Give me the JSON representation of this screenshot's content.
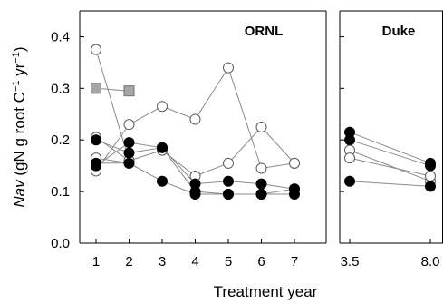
{
  "chart_data": {
    "type": "scatter",
    "ylabel": "Nav (gN g root C⁻¹ yr⁻¹)",
    "ylabel_italic_part": "Nav",
    "ylabel_rest": " (gN g root C",
    "ylabel_sup": "−1",
    "ylabel_mid": " yr",
    "ylabel_sup2": "−1",
    "ylabel_end": ")",
    "xlabel": "Treatment year",
    "ylim": [
      0,
      0.45
    ],
    "yticks": [
      "0.0",
      "0.1",
      "0.2",
      "0.3",
      "0.4"
    ],
    "yticks_values": [
      0,
      0.1,
      0.2,
      0.3,
      0.4
    ],
    "grid": false,
    "panels": [
      {
        "title": "ORNL",
        "xticks": [
          1,
          2,
          3,
          4,
          5,
          6,
          7
        ],
        "xticklabels": [
          "1",
          "2",
          "3",
          "4",
          "5",
          "6",
          "7"
        ],
        "xlim": [
          0.5,
          7.5
        ],
        "series": [
          {
            "marker": "open-circle",
            "x": [
              1,
              2,
              3,
              4,
              5,
              6,
              7
            ],
            "y": [
              0.375,
              0.16,
              0.18,
              0.13,
              0.155,
              0.225,
              0.155
            ]
          },
          {
            "marker": "open-circle",
            "x": [
              1,
              2,
              3,
              4,
              5,
              6,
              7
            ],
            "y": [
              0.14,
              0.23,
              0.265,
              0.24,
              0.34,
              0.145,
              0.155
            ]
          },
          {
            "marker": "open-circle",
            "x": [
              1,
              2
            ],
            "y": [
              0.165,
              0.155
            ]
          },
          {
            "marker": "open-circle",
            "x": [
              1,
              2
            ],
            "y": [
              0.205,
              0.16
            ]
          },
          {
            "marker": "filled-circle",
            "x": [
              1,
              2,
              3,
              4,
              5,
              6,
              7
            ],
            "y": [
              0.2,
              0.175,
              0.185,
              0.115,
              0.12,
              0.115,
              0.105
            ]
          },
          {
            "marker": "filled-circle",
            "x": [
              1,
              2,
              3,
              4,
              5,
              6,
              7
            ],
            "y": [
              0.15,
              0.195,
              0.185,
              0.1,
              0.095,
              0.095,
              0.095
            ]
          },
          {
            "marker": "filled-circle",
            "x": [
              1,
              2,
              3,
              4,
              5,
              6,
              7
            ],
            "y": [
              0.155,
              0.155,
              0.12,
              0.095,
              0.095,
              0.095,
              0.105
            ]
          },
          {
            "marker": "gray-square",
            "x": [
              1,
              2
            ],
            "y": [
              0.3,
              0.295
            ]
          }
        ]
      },
      {
        "title": "Duke",
        "xticks": [
          3.5,
          8.0
        ],
        "xticklabels": [
          "3.5",
          "8.0"
        ],
        "xlim": [
          3.0,
          8.5
        ],
        "series": [
          {
            "marker": "filled-circle",
            "x": [
              3.5,
              8.0
            ],
            "y": [
              0.215,
              0.155
            ]
          },
          {
            "marker": "filled-circle",
            "x": [
              3.5,
              8.0
            ],
            "y": [
              0.2,
              0.15
            ]
          },
          {
            "marker": "open-circle",
            "x": [
              3.5,
              8.0
            ],
            "y": [
              0.18,
              0.12
            ]
          },
          {
            "marker": "open-circle",
            "x": [
              3.5,
              8.0
            ],
            "y": [
              0.165,
              0.13
            ]
          },
          {
            "marker": "filled-circle",
            "x": [
              3.5,
              8.0
            ],
            "y": [
              0.12,
              0.11
            ]
          }
        ]
      }
    ],
    "colors": {
      "open_fill": "#ffffff",
      "filled_fill": "#000000",
      "square_fill": "#a6a6a6",
      "line": "#8a8a8a"
    }
  }
}
